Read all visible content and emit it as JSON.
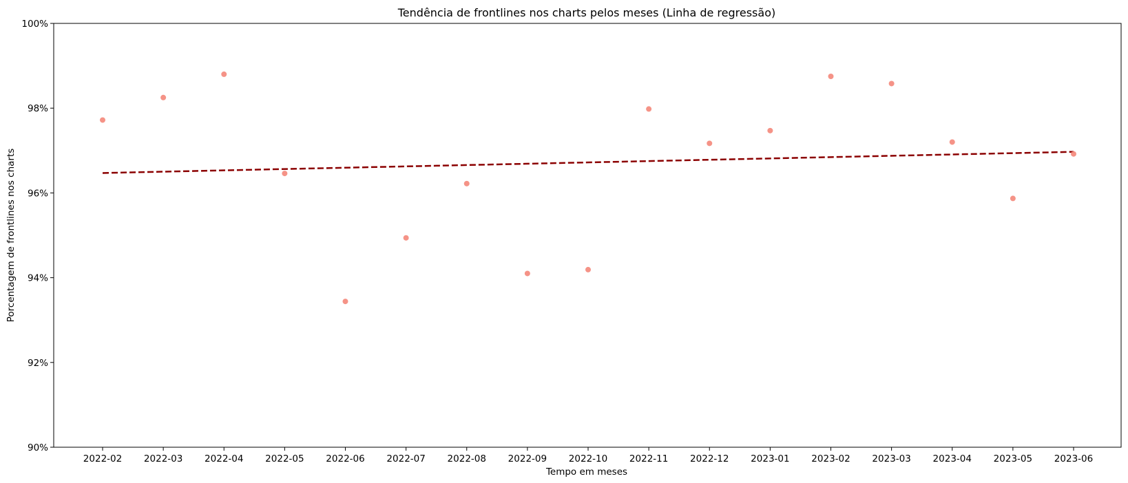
{
  "chart_data": {
    "type": "scatter",
    "title": "Tendência de frontlines nos charts pelos meses (Linha de regressão)",
    "xlabel": "Tempo em meses",
    "ylabel": "Porcentagem de frontlines nos charts",
    "categories": [
      "2022-02",
      "2022-03",
      "2022-04",
      "2022-05",
      "2022-06",
      "2022-07",
      "2022-08",
      "2022-09",
      "2022-10",
      "2022-11",
      "2022-12",
      "2023-01",
      "2023-02",
      "2023-03",
      "2023-04",
      "2023-05",
      "2023-06"
    ],
    "series": [
      {
        "kind": "scatter",
        "color": "#f4877a",
        "values": [
          97.72,
          98.25,
          98.8,
          96.46,
          93.44,
          94.94,
          96.22,
          94.1,
          94.19,
          97.98,
          97.17,
          97.47,
          98.75,
          98.58,
          97.2,
          95.87,
          96.92
        ]
      },
      {
        "kind": "regression-line",
        "color": "#8b0000",
        "style": "dashed",
        "start": 96.47,
        "end": 96.97
      }
    ],
    "ylim": [
      90,
      100
    ],
    "yticks": [
      90,
      92,
      94,
      96,
      98,
      100
    ],
    "ytick_labels": [
      "90%",
      "92%",
      "94%",
      "96%",
      "98%",
      "100%"
    ],
    "grid": false,
    "legend": "none"
  }
}
